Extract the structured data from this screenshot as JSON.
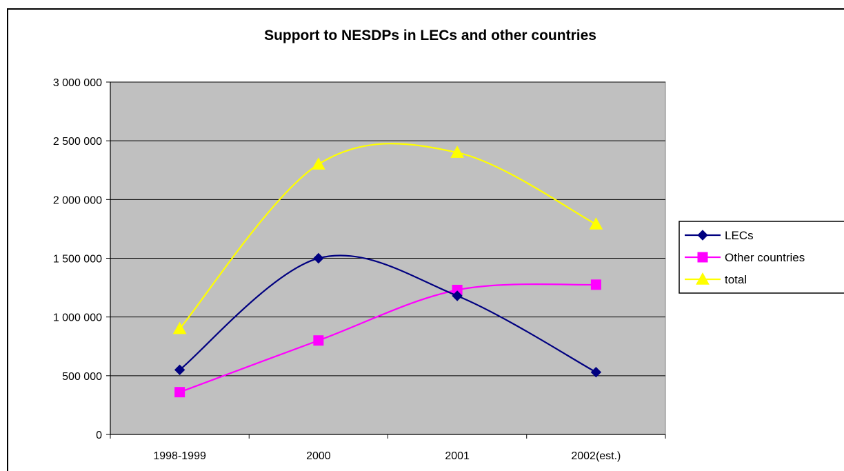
{
  "chart_data": {
    "type": "line",
    "title": "Support to NESDPs in LECs and other countries",
    "xlabel": "",
    "ylabel": "",
    "categories": [
      "1998-1999",
      "2000",
      "2001",
      "2002(est.)"
    ],
    "ylim": [
      0,
      3000000
    ],
    "ytick_step": 500000,
    "ytick_labels": [
      "0",
      "500 000",
      "1 000 000",
      "1 500 000",
      "2 000 000",
      "2 500 000",
      "3 000 000"
    ],
    "grid": true,
    "smoothed": true,
    "legend_position": "right",
    "plot_background": "#c0c0c0",
    "series": [
      {
        "name": "LECs",
        "values": [
          550000,
          1500000,
          1180000,
          530000
        ],
        "color": "#000080",
        "marker": "diamond"
      },
      {
        "name": "Other countries",
        "values": [
          360000,
          800000,
          1230000,
          1275000
        ],
        "color": "#ff00ff",
        "marker": "square"
      },
      {
        "name": "total",
        "values": [
          900000,
          2300000,
          2400000,
          1790000
        ],
        "color": "#ffff00",
        "marker": "triangle"
      }
    ]
  }
}
